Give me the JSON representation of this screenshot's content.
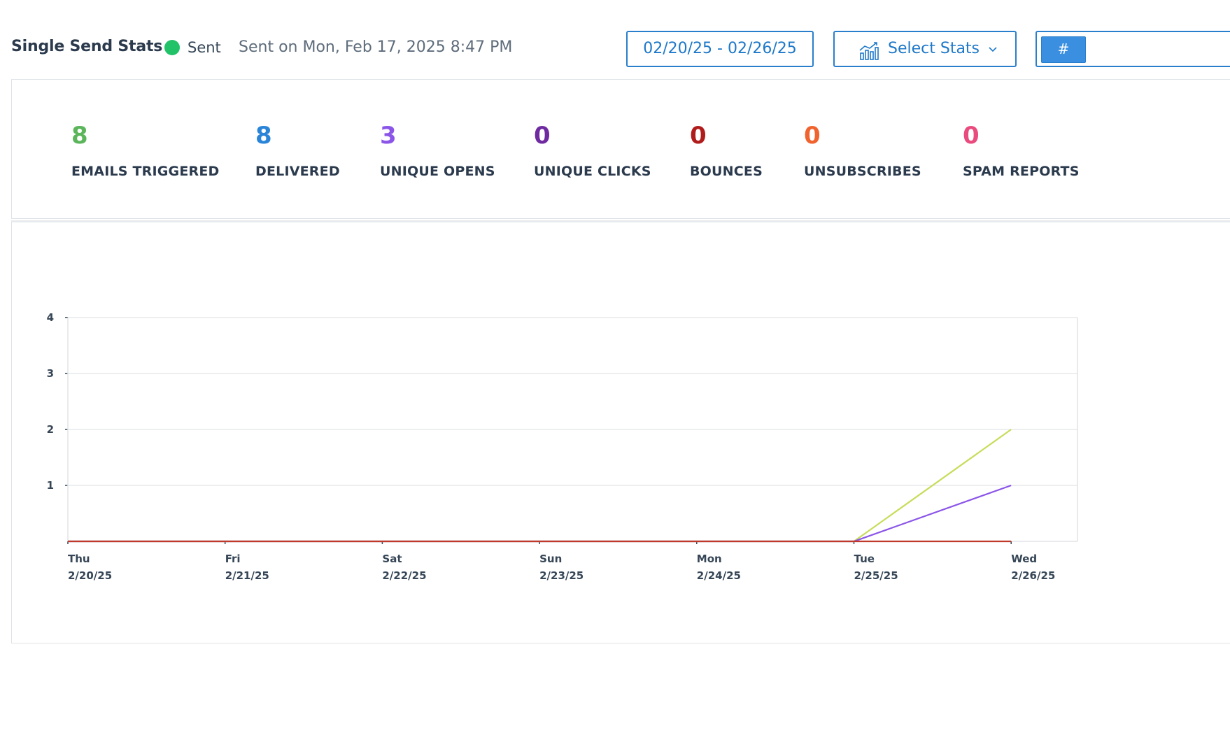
{
  "header": {
    "title": "Single Send Stats",
    "status": {
      "label": "Sent",
      "color": "#22c268"
    },
    "sent_on": "Sent on Mon, Feb 17, 2025 8:47 PM",
    "date_range": "02/20/25 - 02/26/25",
    "select_stats": {
      "label": "Select Stats",
      "icon": "bar-chart-icon"
    },
    "hash_toggle": "#"
  },
  "stats": [
    {
      "value": "8",
      "label": "EMAILS TRIGGERED",
      "color": "#5bb55a"
    },
    {
      "value": "8",
      "label": "DELIVERED",
      "color": "#2a85d8"
    },
    {
      "value": "3",
      "label": "UNIQUE OPENS",
      "color": "#8b55e8"
    },
    {
      "value": "0",
      "label": "UNIQUE CLICKS",
      "color": "#6f2aa0"
    },
    {
      "value": "0",
      "label": "BOUNCES",
      "color": "#b01c1c"
    },
    {
      "value": "0",
      "label": "UNSUBSCRIBES",
      "color": "#f0622e"
    },
    {
      "value": "0",
      "label": "SPAM REPORTS",
      "color": "#ea4b7e"
    }
  ],
  "chart_data": {
    "type": "line",
    "categories": [
      {
        "day": "Thu",
        "date": "2/20/25"
      },
      {
        "day": "Fri",
        "date": "2/21/25"
      },
      {
        "day": "Sat",
        "date": "2/22/25"
      },
      {
        "day": "Sun",
        "date": "2/23/25"
      },
      {
        "day": "Mon",
        "date": "2/24/25"
      },
      {
        "day": "Tue",
        "date": "2/25/25"
      },
      {
        "day": "Wed",
        "date": "2/26/25"
      }
    ],
    "ylim": [
      0,
      4
    ],
    "yticks": [
      "1",
      "2",
      "3",
      "4"
    ],
    "grid": true,
    "series": [
      {
        "values": [
          0,
          0,
          0,
          0,
          0,
          0,
          2
        ],
        "color": "#c8dc5a"
      },
      {
        "values": [
          0,
          0,
          0,
          0,
          0,
          0,
          1
        ],
        "color": "#8b55e8"
      },
      {
        "values": [
          0,
          0,
          0,
          0,
          0,
          0,
          0
        ],
        "color": "#c0392b"
      }
    ]
  }
}
